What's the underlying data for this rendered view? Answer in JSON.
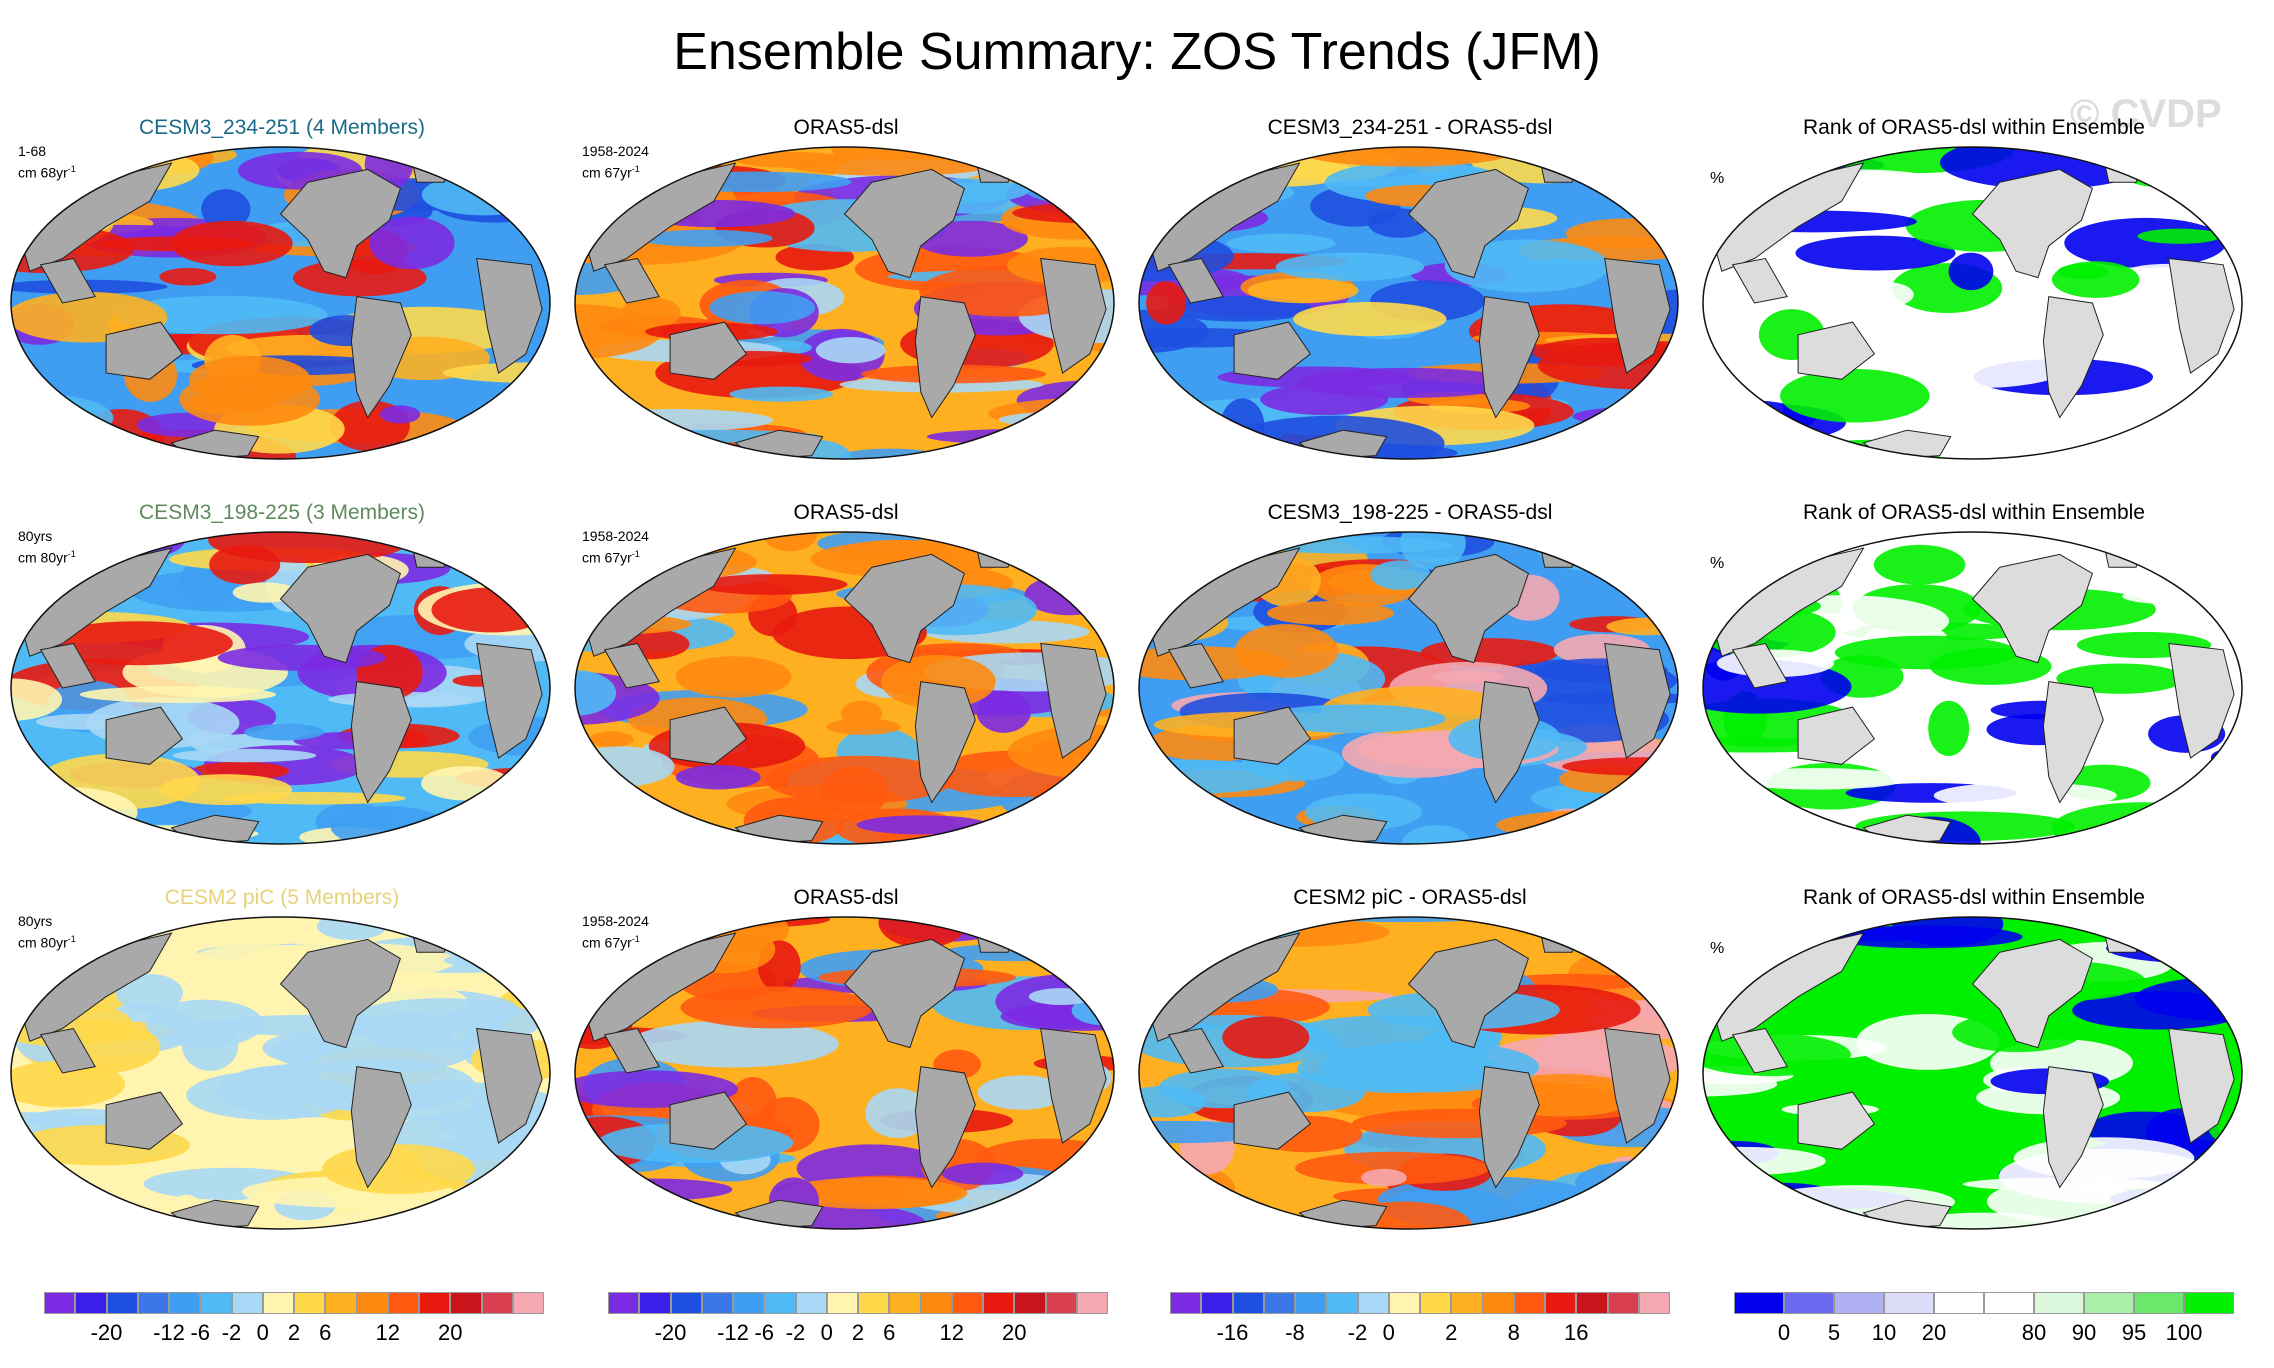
{
  "title": "Ensemble Summary: ZOS Trends (JFM)",
  "watermark": "© CVDP",
  "colors": {
    "land": "#a9a9a9",
    "land_rank": "#dcdcdc",
    "ocean_blue": "#4aa3ff",
    "ocean_orange": "#ffa020",
    "purple": "#7a30e0",
    "green": "#00f000",
    "dark_blue": "#0000ee"
  },
  "rows": [
    {
      "panels": [
        {
          "title": "CESM3_234-251 (4 Members)",
          "title_color": "#1a6a8a",
          "period": "1-68",
          "unit_line": "cm 68yr",
          "unit_sup": "-1",
          "kind": "model_blue"
        },
        {
          "title": "ORAS5-dsl",
          "title_color": "#000000",
          "period": "1958-2024",
          "unit_line": "cm 67yr",
          "unit_sup": "-1",
          "kind": "obs"
        },
        {
          "title": "CESM3_234-251 - ORAS5-dsl",
          "title_color": "#000000",
          "period": "",
          "unit_line": "",
          "unit_sup": "",
          "kind": "diff_blue"
        },
        {
          "title": "Rank of ORAS5-dsl within Ensemble",
          "title_color": "#000000",
          "period": "%",
          "unit_line": "",
          "unit_sup": "",
          "kind": "rank1"
        }
      ]
    },
    {
      "panels": [
        {
          "title": "CESM3_198-225 (3 Members)",
          "title_color": "#5e8a5e",
          "period": "80yrs",
          "unit_line": "cm 80yr",
          "unit_sup": "-1",
          "kind": "model_light"
        },
        {
          "title": "ORAS5-dsl",
          "title_color": "#000000",
          "period": "1958-2024",
          "unit_line": "cm 67yr",
          "unit_sup": "-1",
          "kind": "obs"
        },
        {
          "title": "CESM3_198-225 - ORAS5-dsl",
          "title_color": "#000000",
          "period": "",
          "unit_line": "",
          "unit_sup": "",
          "kind": "diff_mixed"
        },
        {
          "title": "Rank of ORAS5-dsl within Ensemble",
          "title_color": "#000000",
          "period": "%",
          "unit_line": "",
          "unit_sup": "",
          "kind": "rank2"
        }
      ]
    },
    {
      "panels": [
        {
          "title": "CESM2 piC (5 Members)",
          "title_color": "#e8d27a",
          "period": "80yrs",
          "unit_line": "cm 80yr",
          "unit_sup": "-1",
          "kind": "model_pale"
        },
        {
          "title": "ORAS5-dsl",
          "title_color": "#000000",
          "period": "1958-2024",
          "unit_line": "cm 67yr",
          "unit_sup": "-1",
          "kind": "obs"
        },
        {
          "title": "CESM2 piC - ORAS5-dsl",
          "title_color": "#000000",
          "period": "",
          "unit_line": "",
          "unit_sup": "",
          "kind": "diff_red"
        },
        {
          "title": "Rank of ORAS5-dsl within Ensemble",
          "title_color": "#000000",
          "period": "%",
          "unit_line": "",
          "unit_sup": "",
          "kind": "rank3"
        }
      ]
    }
  ],
  "colorbars": [
    {
      "name": "model-colorbar",
      "colors": [
        "#7b2be2",
        "#3b1fe8",
        "#1f4fe0",
        "#3a78e8",
        "#3f9ef2",
        "#4fbaf5",
        "#a8d8f5",
        "#fff5b0",
        "#ffd84a",
        "#ffb020",
        "#ff8a10",
        "#ff5a10",
        "#e81a10",
        "#c8141a",
        "#d84050",
        "#f5a8b0"
      ],
      "labels": [
        "-20",
        "-12",
        "-6",
        "-2",
        "0",
        "2",
        "6",
        "12",
        "20"
      ]
    },
    {
      "name": "obs-colorbar",
      "colors": [
        "#7b2be2",
        "#3b1fe8",
        "#1f4fe0",
        "#3a78e8",
        "#3f9ef2",
        "#4fbaf5",
        "#a8d8f5",
        "#fff5b0",
        "#ffd84a",
        "#ffb020",
        "#ff8a10",
        "#ff5a10",
        "#e81a10",
        "#c8141a",
        "#d84050",
        "#f5a8b0"
      ],
      "labels": [
        "-20",
        "-12",
        "-6",
        "-2",
        "0",
        "2",
        "6",
        "12",
        "20"
      ]
    },
    {
      "name": "diff-colorbar",
      "colors": [
        "#7b2be2",
        "#3b1fe8",
        "#1f4fe0",
        "#3a78e8",
        "#3f9ef2",
        "#4fbaf5",
        "#a8d8f5",
        "#fff5b0",
        "#ffd84a",
        "#ffb020",
        "#ff8a10",
        "#ff5a10",
        "#e81a10",
        "#c8141a",
        "#d84050",
        "#f5a8b0"
      ],
      "labels": [
        "-16",
        "-8",
        "-2",
        "0",
        "2",
        "8",
        "16"
      ]
    },
    {
      "name": "rank-colorbar",
      "colors": [
        "#0000ee",
        "#6a6af0",
        "#b0b0f5",
        "#dcdcf8",
        "#ffffff",
        "#ffffff",
        "#dcf8dc",
        "#a8f0a8",
        "#6ae86a",
        "#00f000"
      ],
      "labels": [
        "0",
        "5",
        "10",
        "20",
        "80",
        "90",
        "95",
        "100"
      ]
    }
  ]
}
